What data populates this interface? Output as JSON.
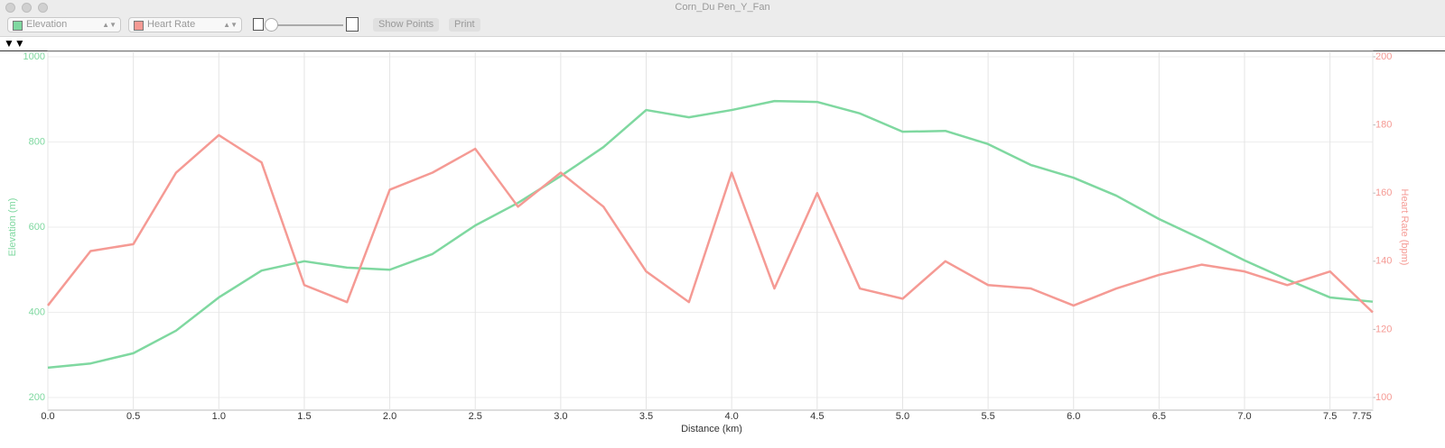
{
  "window": {
    "title": "Corn_Du Pen_Y_Fan"
  },
  "toolbar": {
    "left_select": "Elevation",
    "right_select": "Heart Rate",
    "buttons": [
      "Show Points",
      "Print"
    ]
  },
  "chart_data": {
    "type": "line",
    "x_label": "Distance (km)",
    "y_label": "Elevation (m)",
    "y2_label": "Heart Rate (bpm)",
    "x": [
      0,
      0.25,
      0.5,
      0.75,
      1,
      1.25,
      1.5,
      1.75,
      2,
      2.25,
      2.5,
      2.75,
      3,
      3.25,
      3.5,
      3.75,
      4,
      4.25,
      4.5,
      4.75,
      5,
      5.25,
      5.5,
      5.75,
      6,
      6.25,
      6.5,
      6.75,
      7,
      7.25,
      7.5,
      7.75
    ],
    "series": [
      {
        "name": "Elevation",
        "color": "#7fd8a0",
        "values": [
          270,
          280,
          304,
          357,
          435,
          498,
          520,
          505,
          500,
          537,
          604,
          657,
          720,
          788,
          875,
          858,
          875,
          896,
          894,
          867,
          824,
          826,
          795,
          746,
          716,
          674,
          619,
          572,
          522,
          477,
          435,
          425
        ]
      },
      {
        "name": "Heart Rate",
        "color": "#f59a94",
        "axis": "y2",
        "values": [
          127,
          143,
          145,
          166,
          177,
          169,
          133,
          128,
          161,
          166,
          173,
          156,
          166,
          156,
          137,
          128,
          166,
          132,
          160,
          132,
          129,
          140,
          133,
          132,
          127,
          132,
          136,
          139,
          137,
          133,
          137,
          125
        ]
      }
    ],
    "xlim": [
      0,
      7.75
    ],
    "xticks": [
      {
        "value": 0,
        "label": "0.0"
      },
      0.5,
      {
        "value": 1,
        "label": "1.0"
      },
      1.5,
      {
        "value": 2,
        "label": "2.0"
      },
      2.5,
      {
        "value": 3,
        "label": "3.0"
      },
      3.5,
      {
        "value": 4,
        "label": "4.0"
      },
      4.5,
      {
        "value": 5,
        "label": "5.0"
      },
      5.5,
      {
        "value": 6,
        "label": "6.0"
      },
      6.5,
      {
        "value": 7,
        "label": "7.0"
      },
      7.5,
      7.75
    ],
    "ylim": [
      200,
      1000
    ],
    "yticks": [
      200,
      400,
      600,
      800,
      1000
    ],
    "y2lim": [
      100,
      200
    ],
    "y2ticks": [
      100,
      120,
      140,
      160,
      180,
      200
    ],
    "grid": true
  }
}
